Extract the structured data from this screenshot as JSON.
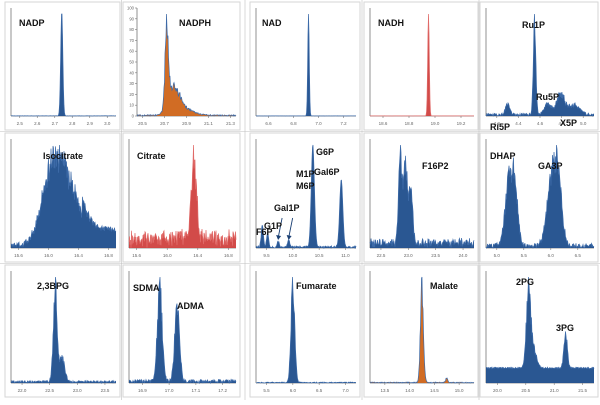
{
  "colors": {
    "blue": "#1f4e8c",
    "blue_line": "#3c6aa8",
    "red": "#d0413f",
    "red_line": "#e06a68",
    "orange": "#cf6418",
    "grid_line": "#d6d6d6",
    "tick_text": "#666666",
    "label_text": "#111111"
  },
  "chart_data": [
    {
      "type": "area",
      "title": "",
      "labels": [
        {
          "text": "NADP"
        }
      ],
      "xticks": [
        "2.5",
        "2.6",
        "2.7",
        "2.8",
        "2.9",
        "3.0"
      ],
      "xlim": [
        2.45,
        3.05
      ],
      "series": [
        {
          "color": "blue",
          "peaks": [
            {
              "center": 2.74,
              "width": 0.006,
              "height": 1.0
            }
          ],
          "noise": 0.003,
          "ragged": false
        }
      ],
      "annotations": []
    },
    {
      "type": "area",
      "title": "",
      "labels": [
        {
          "text": "NADPH"
        }
      ],
      "yticks": [
        "0",
        "10",
        "20",
        "30",
        "40",
        "50",
        "60",
        "70",
        "80",
        "90",
        "100"
      ],
      "ylim": [
        0,
        100
      ],
      "xticks": [
        "20.5",
        "20.7",
        "20.9",
        "21.1",
        "21.3"
      ],
      "xlim": [
        20.45,
        21.35
      ],
      "series": [
        {
          "color": "orange",
          "peaks": [
            {
              "center": 20.72,
              "width": 0.015,
              "height": 85
            },
            {
              "center": 20.78,
              "width": 0.05,
              "height": 30
            },
            {
              "center": 20.88,
              "width": 0.08,
              "height": 8
            }
          ],
          "noise": 1.5,
          "ragged": true,
          "outline": "blue_line"
        }
      ],
      "annotations": []
    },
    {
      "type": "area",
      "title": "",
      "labels": [
        {
          "text": "NAD"
        }
      ],
      "xticks": [
        "6.6",
        "6.8",
        "7.0",
        "7.2"
      ],
      "xlim": [
        6.5,
        7.3
      ],
      "series": [
        {
          "color": "blue",
          "peaks": [
            {
              "center": 6.92,
              "width": 0.006,
              "height": 1.0
            }
          ],
          "noise": 0.002,
          "ragged": false
        }
      ],
      "annotations": []
    },
    {
      "type": "area",
      "title": "",
      "labels": [
        {
          "text": "NADH"
        }
      ],
      "xticks": [
        "18.6",
        "18.8",
        "19.0",
        "19.2"
      ],
      "xlim": [
        18.5,
        19.3
      ],
      "series": [
        {
          "color": "red",
          "peaks": [
            {
              "center": 18.95,
              "width": 0.006,
              "height": 1.0
            }
          ],
          "noise": 0.002,
          "ragged": false
        }
      ],
      "annotations": []
    },
    {
      "type": "area",
      "title": "",
      "labels": [
        {
          "text": "Ru1P"
        },
        {
          "text": "Ru5P"
        },
        {
          "text": "Ri5P"
        },
        {
          "text": "X5P"
        }
      ],
      "xticks": [
        "4.2",
        "4.4",
        "4.6",
        "4.8",
        "5.0"
      ],
      "xlim": [
        4.1,
        5.1
      ],
      "series": [
        {
          "color": "blue",
          "peaks": [
            {
              "center": 4.3,
              "width": 0.02,
              "height": 0.12
            },
            {
              "center": 4.55,
              "width": 0.012,
              "height": 1.0
            },
            {
              "center": 4.67,
              "width": 0.03,
              "height": 0.12
            },
            {
              "center": 4.79,
              "width": 0.04,
              "height": 0.22
            },
            {
              "center": 4.92,
              "width": 0.05,
              "height": 0.1
            }
          ],
          "noise": 0.03,
          "ragged": true
        }
      ],
      "annotations": []
    },
    {
      "type": "area",
      "title": "",
      "labels": [
        {
          "text": "Isocitrate"
        }
      ],
      "xticks": [
        "15.6",
        "16.0",
        "16.4",
        "16.8"
      ],
      "xlim": [
        15.5,
        16.9
      ],
      "series": [
        {
          "color": "blue",
          "peaks": [
            {
              "center": 16.05,
              "width": 0.14,
              "height": 0.95
            },
            {
              "center": 16.28,
              "width": 0.16,
              "height": 0.7
            }
          ],
          "noise": 0.08,
          "ragged": true,
          "baseline_after": 0.22,
          "baseline_after_x": 16.45
        }
      ],
      "annotations": []
    },
    {
      "type": "area",
      "title": "",
      "labels": [
        {
          "text": "Citrate"
        }
      ],
      "xticks": [
        "15.6",
        "16.0",
        "16.4",
        "16.8"
      ],
      "xlim": [
        15.5,
        16.9
      ],
      "series": [
        {
          "color": "red",
          "peaks": [
            {
              "center": 16.35,
              "width": 0.035,
              "height": 0.85
            }
          ],
          "noise": 0.12,
          "ragged": true,
          "baseline_noise": 0.1,
          "red_line_noise": true
        }
      ],
      "annotations": []
    },
    {
      "type": "area",
      "title": "",
      "labels": [
        {
          "text": "G6P"
        },
        {
          "text": "M1P"
        },
        {
          "text": "M6P"
        },
        {
          "text": "Gal1P"
        },
        {
          "text": "Gal6P"
        },
        {
          "text": "G1P"
        },
        {
          "text": "F6P"
        }
      ],
      "xticks": [
        "9.5",
        "10.0",
        "10.5",
        "11.0"
      ],
      "xlim": [
        9.3,
        11.2
      ],
      "series": [
        {
          "color": "blue",
          "peaks": [
            {
              "center": 9.42,
              "width": 0.02,
              "height": 0.22
            },
            {
              "center": 9.52,
              "width": 0.02,
              "height": 0.14
            },
            {
              "center": 9.72,
              "width": 0.02,
              "height": 0.06
            },
            {
              "center": 9.92,
              "width": 0.02,
              "height": 0.08
            },
            {
              "center": 10.38,
              "width": 0.03,
              "height": 1.0
            },
            {
              "center": 10.92,
              "width": 0.03,
              "height": 0.66
            }
          ],
          "noise": 0.02,
          "ragged": false
        }
      ],
      "annotations": [
        {
          "target": 9.72
        },
        {
          "target": 9.92
        }
      ]
    },
    {
      "type": "area",
      "title": "",
      "labels": [
        {
          "text": "F16P2"
        }
      ],
      "xticks": [
        "22.5",
        "23.0",
        "23.5",
        "24.0"
      ],
      "xlim": [
        22.3,
        24.2
      ],
      "series": [
        {
          "color": "blue",
          "peaks": [
            {
              "center": 22.85,
              "width": 0.03,
              "height": 0.85
            },
            {
              "center": 22.95,
              "width": 0.04,
              "height": 0.75
            },
            {
              "center": 23.05,
              "width": 0.03,
              "height": 0.5
            }
          ],
          "noise": 0.06,
          "ragged": true,
          "baseline_noise": 0.04
        }
      ],
      "annotations": []
    },
    {
      "type": "area",
      "title": "",
      "labels": [
        {
          "text": "DHAP"
        },
        {
          "text": "GA3P"
        }
      ],
      "xticks": [
        "5.0",
        "5.5",
        "6.0",
        "6.5"
      ],
      "xlim": [
        4.8,
        6.8
      ],
      "series": [
        {
          "color": "blue",
          "peaks": [
            {
              "center": 5.22,
              "width": 0.07,
              "height": 0.62
            },
            {
              "center": 5.33,
              "width": 0.06,
              "height": 0.55
            },
            {
              "center": 6.02,
              "width": 0.09,
              "height": 0.68
            },
            {
              "center": 6.14,
              "width": 0.07,
              "height": 0.55
            }
          ],
          "noise": 0.05,
          "ragged": true
        }
      ],
      "annotations": []
    },
    {
      "type": "area",
      "title": "",
      "labels": [
        {
          "text": "2,3BPG"
        }
      ],
      "xticks": [
        "22.0",
        "22.5",
        "23.0",
        "23.5"
      ],
      "xlim": [
        21.8,
        23.7
      ],
      "series": [
        {
          "color": "blue",
          "peaks": [
            {
              "center": 22.6,
              "width": 0.035,
              "height": 0.95
            },
            {
              "center": 22.72,
              "width": 0.05,
              "height": 0.25
            }
          ],
          "noise": 0.025,
          "ragged": true
        }
      ],
      "annotations": []
    },
    {
      "type": "area",
      "title": "",
      "labels": [
        {
          "text": "SDMA"
        },
        {
          "text": "ADMA"
        }
      ],
      "xticks": [
        "16.9",
        "17.0",
        "17.1",
        "17.2"
      ],
      "xlim": [
        16.85,
        17.25
      ],
      "series": [
        {
          "color": "blue",
          "peaks": [
            {
              "center": 16.965,
              "width": 0.009,
              "height": 0.78
            },
            {
              "center": 17.03,
              "width": 0.009,
              "height": 0.62
            }
          ],
          "noise": 0.03,
          "ragged": true
        }
      ],
      "annotations": []
    },
    {
      "type": "area",
      "title": "",
      "labels": [
        {
          "text": "Fumarate"
        }
      ],
      "xticks": [
        "5.5",
        "6.0",
        "6.5",
        "7.0"
      ],
      "xlim": [
        5.3,
        7.2
      ],
      "series": [
        {
          "color": "blue",
          "peaks": [
            {
              "center": 6.0,
              "width": 0.035,
              "height": 1.0
            }
          ],
          "noise": 0.01,
          "ragged": true
        }
      ],
      "annotations": []
    },
    {
      "type": "area",
      "title": "",
      "labels": [
        {
          "text": "Malate"
        }
      ],
      "xticks": [
        "13.5",
        "14.0",
        "14.5",
        "15.0"
      ],
      "xlim": [
        13.2,
        15.3
      ],
      "series": [
        {
          "color": "orange",
          "peaks": [
            {
              "center": 14.25,
              "width": 0.03,
              "height": 1.0
            },
            {
              "center": 14.75,
              "width": 0.02,
              "height": 0.05
            }
          ],
          "noise": 0.01,
          "ragged": true
        }
      ],
      "annotations": []
    },
    {
      "type": "area",
      "title": "",
      "labels": [
        {
          "text": "2PG"
        },
        {
          "text": "3PG"
        }
      ],
      "xticks": [
        "20.0",
        "20.5",
        "21.0",
        "21.5"
      ],
      "xlim": [
        19.8,
        21.7
      ],
      "series": [
        {
          "color": "blue",
          "peaks": [
            {
              "center": 20.55,
              "width": 0.04,
              "height": 0.95
            },
            {
              "center": 20.65,
              "width": 0.05,
              "height": 0.2
            },
            {
              "center": 21.2,
              "width": 0.03,
              "height": 0.42
            }
          ],
          "noise": 0.02,
          "ragged": true,
          "baseline_level": 0.18
        }
      ],
      "annotations": []
    }
  ]
}
